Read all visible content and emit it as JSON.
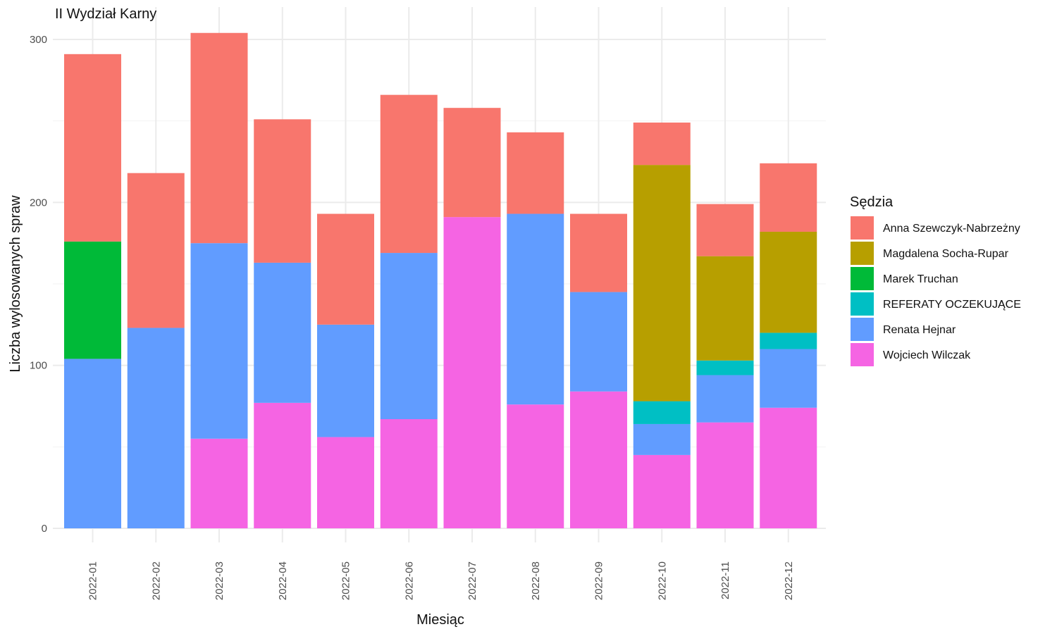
{
  "chart_data": {
    "type": "bar",
    "stacked": true,
    "title": "II Wydział Karny",
    "xlabel": "Miesiąc",
    "ylabel": "Liczba wylosowanych spraw",
    "ylim": [
      0,
      310
    ],
    "yticks": [
      0,
      100,
      200,
      300
    ],
    "grid": true,
    "legend_title": "Sędzia",
    "legend_position": "right",
    "categories": [
      "2022-01",
      "2022-02",
      "2022-03",
      "2022-04",
      "2022-05",
      "2022-06",
      "2022-07",
      "2022-08",
      "2022-09",
      "2022-10",
      "2022-11",
      "2022-12"
    ],
    "stack_order_bottom_to_top": [
      "Wojciech Wilczak",
      "Renata Hejnar",
      "REFERATY OCZEKUJĄCE",
      "Marek Truchan",
      "Magdalena Socha-Rupar",
      "Anna Szewczyk-Nabrzeżny"
    ],
    "series": [
      {
        "name": "Anna Szewczyk-Nabrzeżny",
        "color": "#F8766D",
        "values": [
          115,
          95,
          129,
          88,
          68,
          97,
          67,
          50,
          48,
          26,
          32,
          42
        ]
      },
      {
        "name": "Magdalena Socha-Rupar",
        "color": "#B79F00",
        "values": [
          0,
          0,
          0,
          0,
          0,
          0,
          0,
          0,
          0,
          145,
          64,
          62
        ]
      },
      {
        "name": "Marek Truchan",
        "color": "#00BA38",
        "values": [
          72,
          0,
          0,
          0,
          0,
          0,
          0,
          0,
          0,
          0,
          0,
          0
        ]
      },
      {
        "name": "REFERATY OCZEKUJĄCE",
        "color": "#00BFC4",
        "values": [
          0,
          0,
          0,
          0,
          0,
          0,
          0,
          0,
          0,
          14,
          9,
          10
        ]
      },
      {
        "name": "Renata Hejnar",
        "color": "#619CFF",
        "values": [
          104,
          123,
          120,
          86,
          69,
          102,
          0,
          117,
          61,
          19,
          29,
          36
        ]
      },
      {
        "name": "Wojciech Wilczak",
        "color": "#F564E3",
        "values": [
          0,
          0,
          55,
          77,
          56,
          67,
          191,
          76,
          84,
          45,
          65,
          74
        ]
      }
    ]
  }
}
